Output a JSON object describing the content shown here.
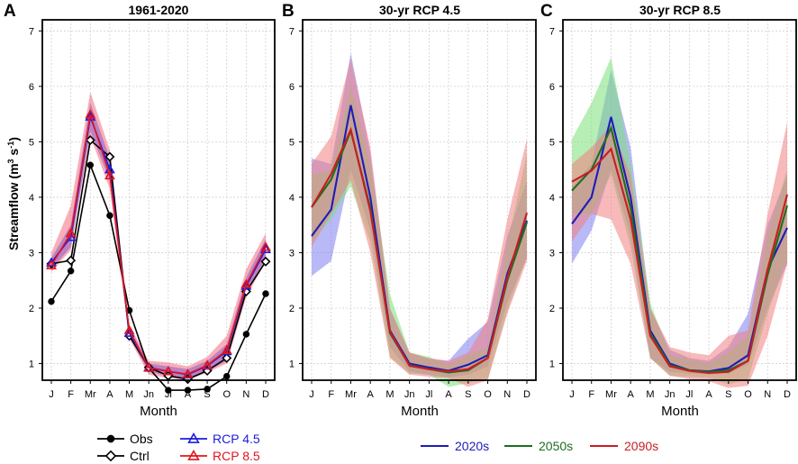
{
  "chart_data": [
    {
      "type": "line",
      "panel_letter": "A",
      "title": "1961-2020",
      "xlabel": "Month",
      "ylabel": "Streamflow (m³ s⁻¹)",
      "ylabel_parts": {
        "main": "Streamflow (m",
        "sup1": "3",
        "mid": " s",
        "sup2": "-1",
        "end": ")"
      },
      "ylim": [
        0.7,
        7.2
      ],
      "yticks": [
        1,
        2,
        3,
        4,
        5,
        6,
        7
      ],
      "categories": [
        "J",
        "F",
        "Mr",
        "A",
        "M",
        "Jn",
        "Jl",
        "A",
        "S",
        "O",
        "N",
        "D"
      ],
      "bands": [
        {
          "name": "RCP 8.5 range",
          "color": "#f26d7d",
          "lower": [
            2.65,
            3.05,
            5.1,
            4.15,
            1.45,
            0.8,
            0.74,
            0.7,
            0.84,
            1.0,
            2.2,
            2.85
          ],
          "upper": [
            3.0,
            3.85,
            5.9,
            4.85,
            1.7,
            1.05,
            1.02,
            0.95,
            1.12,
            1.5,
            2.7,
            3.35
          ]
        },
        {
          "name": "RCP 4.5 range",
          "color": "#8b5cc8",
          "lower": [
            2.7,
            3.1,
            5.2,
            4.3,
            1.5,
            0.85,
            0.78,
            0.72,
            0.86,
            1.05,
            2.25,
            2.9
          ],
          "upper": [
            2.9,
            3.5,
            5.7,
            4.7,
            1.65,
            1.0,
            0.95,
            0.9,
            1.05,
            1.35,
            2.55,
            3.25
          ]
        }
      ],
      "series": [
        {
          "name": "Obs",
          "color": "#000000",
          "marker": "circle",
          "values": [
            2.12,
            2.67,
            4.58,
            3.67,
            1.96,
            0.92,
            0.52,
            0.52,
            0.54,
            0.77,
            1.53,
            2.26
          ]
        },
        {
          "name": "Ctrl",
          "color": "#000000",
          "marker": "diamond",
          "values": [
            2.8,
            2.86,
            5.03,
            4.73,
            1.5,
            0.93,
            0.78,
            0.72,
            0.87,
            1.1,
            2.3,
            2.84
          ]
        },
        {
          "name": "RCP 4.5",
          "color": "#1c1cdc",
          "marker": "triangle",
          "values": [
            2.82,
            3.28,
            5.45,
            4.5,
            1.55,
            0.93,
            0.86,
            0.8,
            0.96,
            1.22,
            2.4,
            3.06
          ]
        },
        {
          "name": "RCP 8.5",
          "color": "#e3141e",
          "marker": "triangle",
          "values": [
            2.77,
            3.35,
            5.49,
            4.39,
            1.6,
            0.92,
            0.86,
            0.81,
            0.97,
            1.24,
            2.43,
            3.1
          ]
        }
      ]
    },
    {
      "type": "line",
      "panel_letter": "B",
      "title": "30-yr RCP 4.5",
      "xlabel": "Month",
      "ylim": [
        0.7,
        7.2
      ],
      "yticks": [
        1,
        2,
        3,
        4,
        5,
        6,
        7
      ],
      "categories": [
        "J",
        "F",
        "Mr",
        "A",
        "M",
        "Jn",
        "Jl",
        "A",
        "S",
        "O",
        "N",
        "D"
      ],
      "bands": [
        {
          "name": "2020s range",
          "color": "#8080f0",
          "lower": [
            2.58,
            2.85,
            4.5,
            3.4,
            1.3,
            0.85,
            0.8,
            0.75,
            0.8,
            0.95,
            2.1,
            2.9
          ],
          "upper": [
            4.7,
            4.6,
            6.6,
            4.8,
            2.0,
            1.2,
            1.08,
            1.05,
            1.45,
            1.75,
            3.3,
            4.3
          ]
        },
        {
          "name": "2050s range",
          "color": "#7ae07a",
          "lower": [
            3.2,
            3.6,
            4.2,
            3.2,
            1.12,
            0.82,
            0.8,
            0.58,
            0.65,
            0.72,
            1.95,
            2.95
          ]
        },
        {
          "name": "2090s range",
          "color": "#f08080",
          "lower": [
            3.1,
            3.7,
            4.3,
            3.0,
            1.1,
            0.8,
            0.76,
            0.74,
            0.58,
            0.7,
            1.9,
            2.85
          ],
          "upper": [
            4.6,
            5.1,
            6.5,
            4.9,
            2.0,
            1.2,
            1.1,
            1.05,
            1.2,
            1.8,
            3.6,
            5.05
          ]
        },
        {
          "name": "2050s upper",
          "color": "#7ae07a",
          "upper": [
            4.4,
            4.5,
            6.0,
            4.6,
            2.25,
            1.2,
            1.12,
            0.98,
            1.15,
            1.3,
            3.15,
            4.8
          ]
        }
      ],
      "series": [
        {
          "name": "2020s",
          "color": "#1c1cb8",
          "values": [
            3.3,
            3.78,
            5.66,
            4.0,
            1.6,
            1.0,
            0.93,
            0.87,
            0.98,
            1.15,
            2.62,
            3.58
          ]
        },
        {
          "name": "2050s",
          "color": "#1e6e1e",
          "values": [
            3.82,
            4.32,
            5.2,
            3.8,
            1.55,
            0.97,
            0.9,
            0.84,
            0.88,
            1.1,
            2.5,
            3.55
          ]
        },
        {
          "name": "2090s",
          "color": "#c81e1e",
          "values": [
            3.82,
            4.42,
            5.22,
            3.75,
            1.58,
            0.96,
            0.9,
            0.86,
            0.9,
            1.1,
            2.55,
            3.72
          ]
        }
      ]
    },
    {
      "type": "line",
      "panel_letter": "C",
      "title": "30-yr RCP 8.5",
      "xlabel": "Month",
      "ylim": [
        0.7,
        7.2
      ],
      "yticks": [
        1,
        2,
        3,
        4,
        5,
        6,
        7
      ],
      "categories": [
        "J",
        "F",
        "Mr",
        "A",
        "M",
        "Jn",
        "Jl",
        "A",
        "S",
        "O",
        "N",
        "D"
      ],
      "bands": [
        {
          "name": "2020s range",
          "color": "#8080f0",
          "lower": [
            2.8,
            3.4,
            4.5,
            3.3,
            1.1,
            0.85,
            0.82,
            0.8,
            0.82,
            0.98,
            2.0,
            2.8
          ],
          "upper": [
            4.2,
            4.6,
            6.3,
            4.9,
            2.0,
            1.25,
            1.1,
            1.05,
            1.3,
            1.9,
            3.5,
            4.4
          ]
        },
        {
          "name": "2050s range",
          "color": "#7ae07a",
          "lower": [
            3.7,
            3.7,
            4.4,
            3.1,
            1.1,
            0.78,
            0.76,
            0.74,
            0.62,
            0.72,
            1.9,
            2.9
          ],
          "upper": [
            5.05,
            5.7,
            6.52,
            4.6,
            2.1,
            1.15,
            1.08,
            1.0,
            1.2,
            1.5,
            3.3,
            4.5
          ]
        },
        {
          "name": "2090s range",
          "color": "#f08080",
          "lower": [
            3.2,
            3.7,
            3.6,
            2.8,
            1.1,
            0.78,
            0.72,
            0.68,
            0.56,
            0.6,
            1.5,
            2.8
          ],
          "upper": [
            4.6,
            4.9,
            5.3,
            4.4,
            2.0,
            1.3,
            1.2,
            1.15,
            1.5,
            1.6,
            3.7,
            5.35
          ]
        }
      ],
      "series": [
        {
          "name": "2020s",
          "color": "#1c1cb8",
          "values": [
            3.52,
            4.0,
            5.45,
            4.0,
            1.6,
            1.0,
            0.88,
            0.86,
            0.92,
            1.15,
            2.7,
            3.45
          ]
        },
        {
          "name": "2050s",
          "color": "#1e6e1e",
          "values": [
            4.12,
            4.5,
            5.25,
            3.8,
            1.55,
            0.97,
            0.88,
            0.85,
            0.88,
            1.05,
            2.6,
            3.85
          ]
        },
        {
          "name": "2090s",
          "color": "#c81e1e",
          "values": [
            4.28,
            4.48,
            4.87,
            3.6,
            1.5,
            0.95,
            0.87,
            0.83,
            0.85,
            1.05,
            2.7,
            4.05
          ]
        }
      ]
    }
  ],
  "legend_left": [
    {
      "label": "Obs",
      "color": "#000000",
      "marker": "circle"
    },
    {
      "label": "Ctrl",
      "color": "#000000",
      "marker": "diamond"
    },
    {
      "label": "RCP 4.5",
      "color": "#1c1cdc",
      "marker": "triangle"
    },
    {
      "label": "RCP 8.5",
      "color": "#e3141e",
      "marker": "triangle"
    }
  ],
  "legend_right": [
    {
      "label": "2020s",
      "color": "#1c1cb8"
    },
    {
      "label": "2050s",
      "color": "#1e6e1e"
    },
    {
      "label": "2090s",
      "color": "#c81e1e"
    }
  ]
}
